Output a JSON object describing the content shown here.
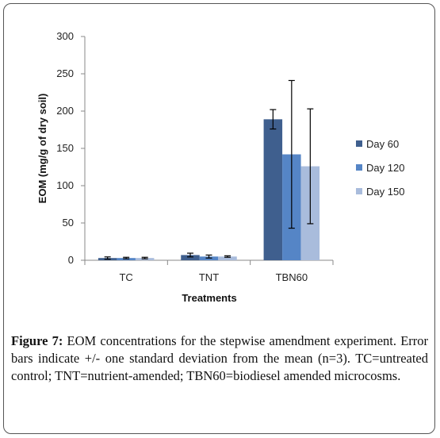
{
  "chart_data": {
    "type": "bar",
    "xlabel": "Treatments",
    "ylabel": "EOM (mg/g of dry soil)",
    "ylim": [
      0,
      300
    ],
    "yticks": [
      0,
      50,
      100,
      150,
      200,
      250,
      300
    ],
    "grid": false,
    "legend_position": "right",
    "categories": [
      "TC",
      "TNT",
      "TBN60"
    ],
    "series": [
      {
        "name": "Day 60",
        "color": "#3f5f8e",
        "values": [
          3,
          7,
          189
        ],
        "errors": [
          1.5,
          2.5,
          13
        ]
      },
      {
        "name": "Day 120",
        "color": "#5585c6",
        "values": [
          3,
          5,
          142
        ],
        "errors": [
          1,
          2,
          99
        ]
      },
      {
        "name": "Day 150",
        "color": "#a9bcdc",
        "values": [
          3,
          5,
          126
        ],
        "errors": [
          1,
          1,
          77
        ]
      }
    ]
  },
  "caption": {
    "label": "Figure 7:",
    "text": "EOM concentrations for the stepwise amendment experiment. Error bars indicate +/- one standard deviation from the mean (n=3). TC=untreated control; TNT=nutrient-amended; TBN60=biodiesel amended microcosms."
  }
}
